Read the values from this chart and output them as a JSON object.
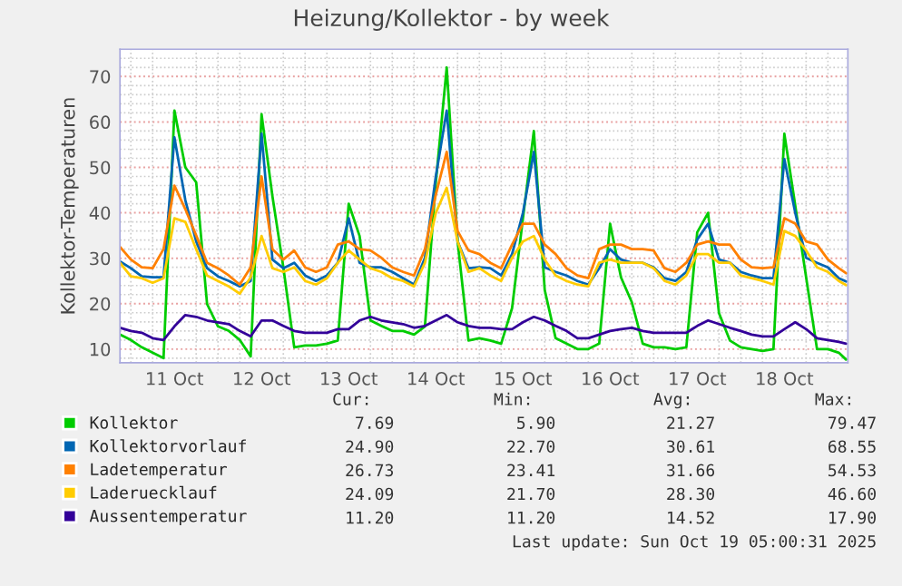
{
  "chart_data": {
    "type": "line",
    "title": "Heizung/Kollektor - by week",
    "ylabel": "Kollektor-Temperaturen",
    "x": [
      "2025-10-10T21:00",
      "2025-10-11T00:00",
      "2025-10-11T03:00",
      "2025-10-11T06:00",
      "2025-10-11T09:00",
      "2025-10-11T12:00",
      "2025-10-11T15:00",
      "2025-10-11T18:00",
      "2025-10-11T21:00",
      "2025-10-12T00:00",
      "2025-10-12T03:00",
      "2025-10-12T06:00",
      "2025-10-12T09:00",
      "2025-10-12T12:00",
      "2025-10-12T15:00",
      "2025-10-12T18:00",
      "2025-10-12T21:00",
      "2025-10-13T00:00",
      "2025-10-13T03:00",
      "2025-10-13T06:00",
      "2025-10-13T09:00",
      "2025-10-13T12:00",
      "2025-10-13T15:00",
      "2025-10-13T18:00",
      "2025-10-13T21:00",
      "2025-10-14T00:00",
      "2025-10-14T03:00",
      "2025-10-14T06:00",
      "2025-10-14T09:00",
      "2025-10-14T12:00",
      "2025-10-14T15:00",
      "2025-10-14T18:00",
      "2025-10-14T21:00",
      "2025-10-15T00:00",
      "2025-10-15T03:00",
      "2025-10-15T06:00",
      "2025-10-15T09:00",
      "2025-10-15T12:00",
      "2025-10-15T15:00",
      "2025-10-15T18:00",
      "2025-10-15T21:00",
      "2025-10-16T00:00",
      "2025-10-16T03:00",
      "2025-10-16T06:00",
      "2025-10-16T09:00",
      "2025-10-16T12:00",
      "2025-10-16T15:00",
      "2025-10-16T18:00",
      "2025-10-16T21:00",
      "2025-10-17T00:00",
      "2025-10-17T03:00",
      "2025-10-17T06:00",
      "2025-10-17T09:00",
      "2025-10-17T12:00",
      "2025-10-17T15:00",
      "2025-10-17T18:00",
      "2025-10-17T21:00",
      "2025-10-18T00:00",
      "2025-10-18T03:00",
      "2025-10-18T06:00",
      "2025-10-18T09:00",
      "2025-10-18T12:00",
      "2025-10-18T15:00",
      "2025-10-18T18:00",
      "2025-10-18T21:00",
      "2025-10-19T00:00",
      "2025-10-19T03:00",
      "2025-10-19T05:00"
    ],
    "series": [
      {
        "name": "Kollektor",
        "color": "#00cc00",
        "values": [
          13.2,
          12,
          10.4,
          9.2,
          8,
          62.5,
          50,
          46.7,
          19.9,
          15,
          14,
          12,
          8.4,
          61.7,
          43.6,
          28,
          10.4,
          10.8,
          10.8,
          11.2,
          11.9,
          42,
          34.9,
          16.3,
          15.1,
          14,
          14,
          13.2,
          15,
          46.7,
          72,
          33.7,
          11.9,
          12.4,
          11.9,
          11.2,
          19,
          38.8,
          58,
          23,
          12.4,
          11.2,
          10,
          10,
          11.2,
          37.6,
          25.8,
          20.3,
          11.2,
          10.4,
          10.4,
          10,
          10.4,
          35.7,
          40,
          17.9,
          11.9,
          10.4,
          10,
          9.6,
          10,
          57.4,
          41.6,
          25.8,
          10,
          10,
          9.2,
          7.7
        ]
      },
      {
        "name": "Kollektorvorlauf",
        "color": "#0066b3",
        "values": [
          29.3,
          27.8,
          26,
          25.8,
          25.8,
          56.6,
          42.8,
          33.7,
          27.8,
          26,
          25,
          23.8,
          25,
          57.4,
          29.7,
          27.8,
          29,
          26.2,
          25,
          26.2,
          29,
          38.8,
          29,
          28,
          28,
          27,
          25.6,
          24.2,
          30.1,
          48,
          62.5,
          33.7,
          27.8,
          28,
          27.8,
          26.2,
          30.9,
          40,
          53.4,
          28,
          27,
          26.2,
          25,
          24.2,
          27.8,
          32,
          29.7,
          29,
          29,
          28,
          25.6,
          25,
          27,
          34.1,
          37.6,
          29.7,
          29,
          27,
          26.2,
          25.6,
          25.6,
          51.8,
          40,
          30.1,
          29,
          28,
          25.6,
          24.9
        ]
      },
      {
        "name": "Ladetemperatur",
        "color": "#ff8000",
        "values": [
          32.5,
          29.7,
          28,
          27.8,
          32,
          46,
          40.8,
          35,
          29,
          27.8,
          26.2,
          24.2,
          28,
          48,
          32,
          29.7,
          31.7,
          28,
          27,
          28,
          33,
          33.7,
          32,
          31.7,
          30.1,
          28,
          27,
          26.2,
          32,
          44,
          53.4,
          36,
          31.7,
          30.9,
          29,
          27.8,
          33,
          37.6,
          37.6,
          33,
          30.9,
          27.8,
          26.2,
          25.6,
          32,
          33,
          33,
          32,
          32,
          31.7,
          27.8,
          27,
          29,
          33,
          33.7,
          33,
          33,
          29.7,
          28,
          27.8,
          28,
          38.8,
          37.6,
          33.7,
          33,
          29.7,
          27.8,
          26.7
        ]
      },
      {
        "name": "Laderuecklauf",
        "color": "#ffcc00",
        "values": [
          29,
          26,
          25.6,
          24.6,
          25.6,
          38.8,
          38,
          32,
          26.2,
          25,
          23.8,
          22.2,
          25.8,
          34.9,
          27.8,
          27,
          28,
          25,
          24.2,
          25.6,
          29,
          31.7,
          29.7,
          27.8,
          27,
          25.6,
          25,
          23.8,
          29,
          40,
          45.5,
          33.7,
          27,
          27.8,
          26.2,
          25,
          30.1,
          33.7,
          34.9,
          29.7,
          26.2,
          25,
          24.2,
          23.8,
          29,
          29.7,
          29,
          29,
          29,
          27.8,
          25,
          24.2,
          26.2,
          30.9,
          30.9,
          29,
          29,
          26.2,
          25.6,
          25,
          24.2,
          36,
          34.9,
          31.7,
          28,
          27,
          25,
          24.1
        ]
      },
      {
        "name": "Aussentemperatur",
        "color": "#330099",
        "values": [
          14.7,
          14,
          13.6,
          12.4,
          12,
          15,
          17.5,
          17.1,
          16.3,
          15.9,
          15.5,
          14,
          12.8,
          16.3,
          16.3,
          15.1,
          14,
          13.6,
          13.6,
          13.6,
          14.4,
          14.4,
          16.3,
          17.1,
          16.3,
          15.9,
          15.5,
          14.7,
          15.1,
          16.3,
          17.5,
          15.9,
          15.1,
          14.7,
          14.7,
          14.4,
          14.4,
          15.9,
          17.1,
          16.3,
          15.1,
          14,
          12.4,
          12.4,
          13.2,
          14,
          14.4,
          14.7,
          14,
          13.6,
          13.6,
          13.6,
          13.6,
          15.1,
          16.3,
          15.5,
          14.7,
          14,
          13.2,
          12.8,
          12.8,
          14.4,
          15.9,
          14.4,
          12.4,
          12,
          11.6,
          11.2
        ]
      }
    ],
    "xlim": [
      "2025-10-10T21:00",
      "2025-10-19T05:30"
    ],
    "xticks": [
      {
        "value": "2025-10-11T12:00",
        "label": "11 Oct"
      },
      {
        "value": "2025-10-12T12:00",
        "label": "12 Oct"
      },
      {
        "value": "2025-10-13T12:00",
        "label": "13 Oct"
      },
      {
        "value": "2025-10-14T12:00",
        "label": "14 Oct"
      },
      {
        "value": "2025-10-15T12:00",
        "label": "15 Oct"
      },
      {
        "value": "2025-10-16T12:00",
        "label": "16 Oct"
      },
      {
        "value": "2025-10-17T12:00",
        "label": "17 Oct"
      },
      {
        "value": "2025-10-18T12:00",
        "label": "18 Oct"
      }
    ],
    "ylim": [
      7,
      76
    ],
    "yticks": [
      10,
      20,
      30,
      40,
      50,
      60,
      70
    ],
    "grid": true,
    "legend": "bottom",
    "annotations": [
      "Cur:",
      "Min:",
      "Avg:",
      "Max:",
      "7.69",
      "5.90",
      "21.27",
      "79.47",
      "24.90",
      "22.70",
      "30.61",
      "68.55",
      "26.73",
      "23.41",
      "31.66",
      "54.53",
      "24.09",
      "21.70",
      "28.30",
      "46.60",
      "11.20",
      "11.20",
      "14.52",
      "17.90",
      "Last update: Sun Oct 19 05:00:31 2025"
    ]
  }
}
